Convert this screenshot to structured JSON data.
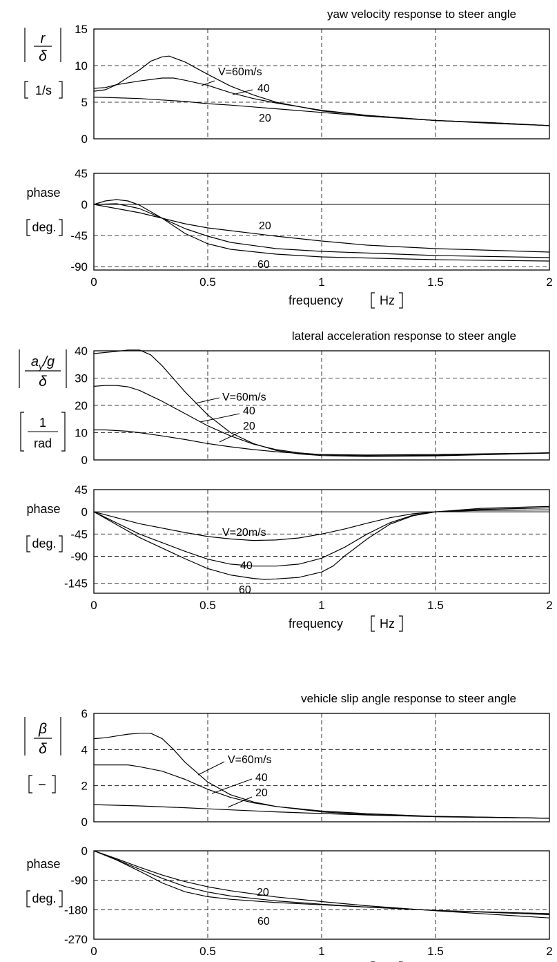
{
  "figure": {
    "line_color": "#000000",
    "grid_color": "#000000",
    "background": "#ffffff",
    "grid_dashed": true
  },
  "chart_data": [
    {
      "type": "line",
      "title": "yaw velocity response to steer angle",
      "ylabel_symbol": "r / δ",
      "ylabel_unit": "[1/s]",
      "xlim": [
        0,
        2
      ],
      "ylim": [
        0,
        15
      ],
      "xticks": [
        "0",
        "0.5",
        "1",
        "1.5",
        "2"
      ],
      "yticks": [
        "0",
        "5",
        "10",
        "15"
      ],
      "series": [
        {
          "name": "V=60m/s",
          "x": [
            0,
            0.05,
            0.1,
            0.2,
            0.25,
            0.3,
            0.33,
            0.4,
            0.5,
            0.6,
            0.7,
            0.8,
            1.0,
            1.2,
            1.5,
            1.75,
            2.0
          ],
          "y": [
            6.5,
            6.7,
            7.4,
            9.4,
            10.6,
            11.2,
            11.3,
            10.5,
            8.8,
            7.2,
            6.0,
            5.0,
            3.8,
            3.2,
            2.5,
            2.2,
            1.8
          ]
        },
        {
          "name": "40",
          "x": [
            0,
            0.05,
            0.1,
            0.2,
            0.3,
            0.35,
            0.4,
            0.5,
            0.6,
            0.7,
            0.8,
            1.0,
            1.2,
            1.5,
            1.75,
            2.0
          ],
          "y": [
            6.9,
            7.0,
            7.4,
            7.9,
            8.3,
            8.3,
            8.0,
            7.3,
            6.3,
            5.5,
            4.9,
            3.9,
            3.2,
            2.5,
            2.2,
            1.8
          ]
        },
        {
          "name": "20",
          "x": [
            0,
            0.1,
            0.2,
            0.3,
            0.4,
            0.5,
            0.6,
            0.8,
            1.0,
            1.2,
            1.5,
            1.75,
            2.0
          ],
          "y": [
            5.7,
            5.6,
            5.5,
            5.3,
            5.1,
            4.8,
            4.6,
            4.1,
            3.6,
            3.1,
            2.5,
            2.1,
            1.8
          ]
        }
      ],
      "annotations": [
        "V=60m/s",
        "40",
        "20"
      ]
    },
    {
      "type": "line",
      "ylabel": "phase",
      "ylabel_unit": "[deg.]",
      "xlabel": "frequency [Hz]",
      "xlim": [
        0,
        2
      ],
      "ylim": [
        -95,
        45
      ],
      "xticks": [
        "0",
        "0.5",
        "1",
        "1.5",
        "2"
      ],
      "yticks": [
        "-90",
        "-45",
        "0",
        "45"
      ],
      "series": [
        {
          "name": "60",
          "x": [
            0,
            0.05,
            0.1,
            0.15,
            0.2,
            0.3,
            0.4,
            0.5,
            0.6,
            0.8,
            1.0,
            1.5,
            2.0
          ],
          "y": [
            0,
            5,
            7,
            5,
            -1,
            -20,
            -42,
            -57,
            -65,
            -72,
            -76,
            -80,
            -82
          ]
        },
        {
          "name": "40",
          "x": [
            0,
            0.1,
            0.2,
            0.3,
            0.4,
            0.5,
            0.6,
            0.8,
            1.0,
            1.5,
            2.0
          ],
          "y": [
            0,
            1,
            -6,
            -20,
            -35,
            -46,
            -55,
            -64,
            -68,
            -74,
            -77
          ]
        },
        {
          "name": "20",
          "x": [
            0,
            0.1,
            0.2,
            0.3,
            0.4,
            0.5,
            0.6,
            0.8,
            1.0,
            1.2,
            1.5,
            2.0
          ],
          "y": [
            0,
            -6,
            -12,
            -20,
            -28,
            -34,
            -38,
            -46,
            -53,
            -59,
            -64,
            -69
          ]
        }
      ],
      "annotations": [
        "20",
        "60"
      ]
    },
    {
      "type": "line",
      "title": "lateral acceleration response to steer angle",
      "ylabel_symbol": "a_y/g / δ",
      "ylabel_unit": "[1 / rad]",
      "xlim": [
        0,
        2
      ],
      "ylim": [
        0,
        40
      ],
      "xticks": [
        "0",
        "0.5",
        "1",
        "1.5",
        "2"
      ],
      "yticks": [
        "0",
        "10",
        "20",
        "30",
        "40"
      ],
      "series": [
        {
          "name": "V=60m/s",
          "x": [
            0,
            0.1,
            0.15,
            0.2,
            0.25,
            0.3,
            0.4,
            0.5,
            0.6,
            0.7,
            0.8,
            0.9,
            1.0,
            1.2,
            1.5,
            2.0
          ],
          "y": [
            39,
            39.8,
            40.3,
            40.3,
            38.5,
            34.5,
            25,
            16.5,
            10,
            6,
            3.5,
            2.2,
            1.6,
            1.3,
            1.5,
            2.5
          ]
        },
        {
          "name": "40",
          "x": [
            0,
            0.05,
            0.1,
            0.15,
            0.2,
            0.3,
            0.4,
            0.5,
            0.6,
            0.7,
            0.8,
            0.9,
            1.0,
            1.2,
            1.5,
            2.0
          ],
          "y": [
            27,
            27.3,
            27.3,
            26.8,
            25.5,
            21.5,
            17,
            12.5,
            8.8,
            5.8,
            3.8,
            2.6,
            1.9,
            1.5,
            1.7,
            2.6
          ]
        },
        {
          "name": "20",
          "x": [
            0,
            0.05,
            0.15,
            0.2,
            0.3,
            0.4,
            0.5,
            0.6,
            0.7,
            0.8,
            0.9,
            1.0,
            1.2,
            1.5,
            2.0
          ],
          "y": [
            11,
            11,
            10.5,
            10,
            8.8,
            7.5,
            6,
            4.8,
            3.8,
            3.0,
            2.4,
            2.0,
            1.8,
            2.0,
            2.6
          ]
        }
      ],
      "annotations": [
        "V=60m/s",
        "40",
        "20"
      ]
    },
    {
      "type": "line",
      "ylabel": "phase",
      "ylabel_unit": "[deg.]",
      "xlabel": "frequency [Hz]",
      "xlim": [
        0,
        2
      ],
      "ylim": [
        -165,
        45
      ],
      "xticks": [
        "0",
        "0.5",
        "1",
        "1.5",
        "2"
      ],
      "yticks": [
        "-145",
        "-90",
        "-45",
        "0",
        "45"
      ],
      "series": [
        {
          "name": "V=20m/s",
          "x": [
            0,
            0.2,
            0.4,
            0.5,
            0.6,
            0.7,
            0.8,
            0.9,
            1.0,
            1.1,
            1.2,
            1.3,
            1.4,
            1.5,
            1.7,
            2.0
          ],
          "y": [
            0,
            -24,
            -42,
            -50,
            -55,
            -58,
            -57,
            -53,
            -45,
            -35,
            -23,
            -12,
            -4,
            0,
            3,
            4
          ]
        },
        {
          "name": "40",
          "x": [
            0,
            0.2,
            0.4,
            0.5,
            0.6,
            0.7,
            0.8,
            0.9,
            1.0,
            1.1,
            1.2,
            1.3,
            1.4,
            1.5,
            1.7,
            2.0
          ],
          "y": [
            0,
            -45,
            -80,
            -96,
            -106,
            -110,
            -110,
            -106,
            -94,
            -72,
            -45,
            -22,
            -7,
            0,
            5,
            8
          ]
        },
        {
          "name": "60",
          "x": [
            0,
            0.2,
            0.4,
            0.5,
            0.6,
            0.7,
            0.75,
            0.8,
            0.9,
            1.0,
            1.05,
            1.1,
            1.2,
            1.3,
            1.4,
            1.5,
            1.7,
            2.0
          ],
          "y": [
            0,
            -52,
            -95,
            -115,
            -128,
            -135,
            -137,
            -136,
            -133,
            -122,
            -110,
            -90,
            -55,
            -25,
            -8,
            0,
            7,
            11
          ]
        }
      ],
      "annotations": [
        "V=20m/s",
        "40",
        "60"
      ]
    },
    {
      "type": "line",
      "title": "vehicle slip angle response to steer angle",
      "ylabel_symbol": "β / δ",
      "ylabel_unit": "[−]",
      "xlim": [
        0,
        2
      ],
      "ylim": [
        0,
        6
      ],
      "xticks": [
        "0",
        "0.5",
        "1",
        "1.5",
        "2"
      ],
      "yticks": [
        "0",
        "2",
        "4",
        "6"
      ],
      "series": [
        {
          "name": "V=60m/s",
          "x": [
            0,
            0.05,
            0.1,
            0.15,
            0.2,
            0.25,
            0.3,
            0.35,
            0.4,
            0.5,
            0.6,
            0.7,
            0.8,
            1.0,
            1.2,
            1.5,
            2.0
          ],
          "y": [
            4.6,
            4.65,
            4.75,
            4.85,
            4.9,
            4.9,
            4.6,
            4.0,
            3.3,
            2.2,
            1.5,
            1.1,
            0.85,
            0.55,
            0.4,
            0.3,
            0.2
          ]
        },
        {
          "name": "40",
          "x": [
            0,
            0.05,
            0.15,
            0.2,
            0.3,
            0.4,
            0.5,
            0.6,
            0.7,
            0.8,
            1.0,
            1.2,
            1.5,
            2.0
          ],
          "y": [
            3.15,
            3.15,
            3.15,
            3.05,
            2.8,
            2.35,
            1.8,
            1.35,
            1.05,
            0.85,
            0.6,
            0.45,
            0.3,
            0.2
          ]
        },
        {
          "name": "20",
          "x": [
            0,
            0.2,
            0.4,
            0.5,
            0.6,
            0.8,
            1.0,
            1.2,
            1.5,
            2.0
          ],
          "y": [
            0.95,
            0.88,
            0.78,
            0.72,
            0.66,
            0.55,
            0.46,
            0.38,
            0.28,
            0.2
          ]
        }
      ],
      "annotations": [
        "V=60m/s",
        "40",
        "20"
      ]
    },
    {
      "type": "line",
      "ylabel": "phase",
      "ylabel_unit": "[deg.]",
      "xlabel": "frequency [Hz]",
      "xlim": [
        0,
        2
      ],
      "ylim": [
        -270,
        0
      ],
      "xticks": [
        "0",
        "0.5",
        "1",
        "1.5",
        "2"
      ],
      "yticks": [
        "-270",
        "-180",
        "-90",
        "0"
      ],
      "series": [
        {
          "name": "60",
          "x": [
            0,
            0.1,
            0.2,
            0.3,
            0.4,
            0.5,
            0.6,
            0.8,
            1.0,
            1.2,
            1.5,
            2.0
          ],
          "y": [
            0,
            -28,
            -62,
            -98,
            -125,
            -140,
            -148,
            -158,
            -165,
            -172,
            -182,
            -192
          ]
        },
        {
          "name": "40",
          "x": [
            0,
            0.1,
            0.2,
            0.3,
            0.4,
            0.5,
            0.6,
            0.8,
            1.0,
            1.2,
            1.5,
            2.0
          ],
          "y": [
            0,
            -27,
            -56,
            -84,
            -109,
            -126,
            -138,
            -153,
            -163,
            -172,
            -182,
            -195
          ]
        },
        {
          "name": "20",
          "x": [
            0,
            0.1,
            0.2,
            0.3,
            0.4,
            0.5,
            0.6,
            0.8,
            1.0,
            1.2,
            1.5,
            2.0
          ],
          "y": [
            0,
            -24,
            -50,
            -74,
            -94,
            -110,
            -122,
            -141,
            -155,
            -168,
            -183,
            -205
          ]
        }
      ],
      "annotations": [
        "20",
        "60"
      ]
    }
  ]
}
